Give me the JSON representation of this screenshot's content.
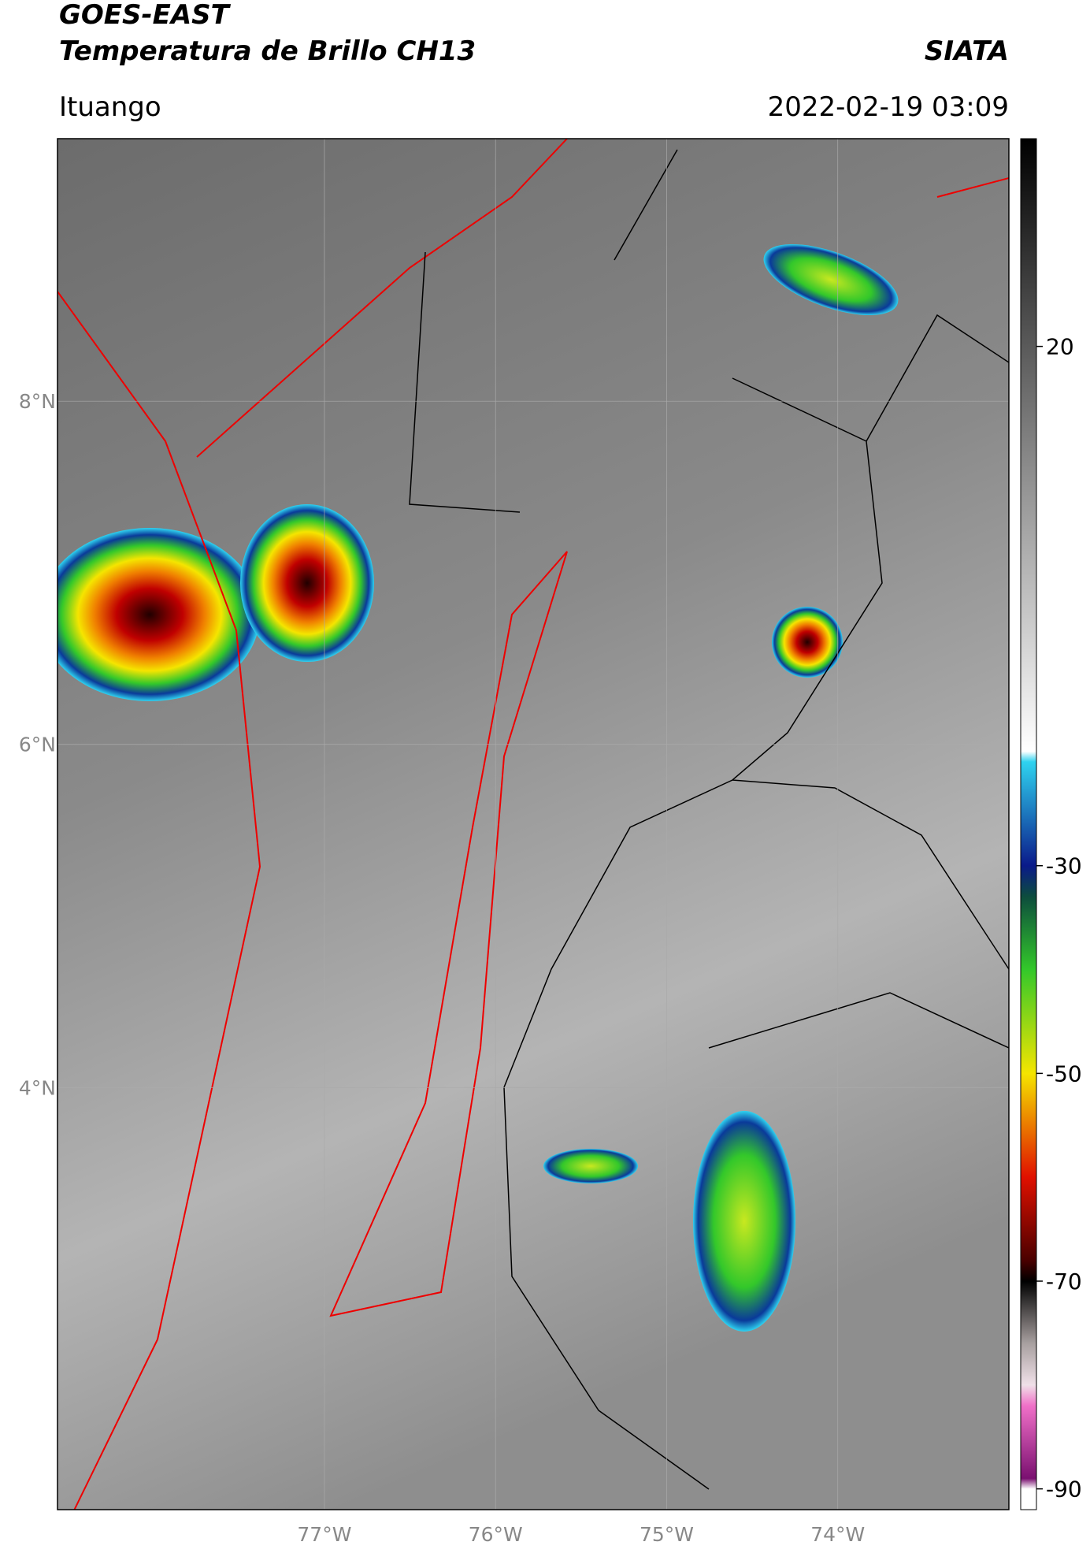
{
  "map": {
    "title": "GOES-EAST",
    "subtitle": "Temperatura de Brillo CH13",
    "source": "SIATA",
    "region": "Ituango",
    "datetime": "2022-02-19 03:09",
    "xlim": [
      -78.56,
      -73.0
    ],
    "ylim": [
      1.54,
      9.53
    ],
    "xticks": [
      {
        "value": -77,
        "label": "77°W"
      },
      {
        "value": -76,
        "label": "76°W"
      },
      {
        "value": -75,
        "label": "75°W"
      },
      {
        "value": -74,
        "label": "74°W"
      }
    ],
    "yticks": [
      {
        "value": 8,
        "label": "8°N"
      },
      {
        "value": 6,
        "label": "6°N"
      },
      {
        "value": 4,
        "label": "4°N"
      }
    ],
    "grid": true,
    "colorbar": {
      "lim": [
        -92,
        40
      ],
      "ticks": [
        20,
        -30,
        -50,
        -70,
        -90
      ],
      "colormap": [
        {
          "value": 40,
          "color": "#000000"
        },
        {
          "value": 20,
          "color": "#5a5a5a"
        },
        {
          "value": -19,
          "color": "#ffffff"
        },
        {
          "value": -20,
          "color": "#2fd3f0"
        },
        {
          "value": -30,
          "color": "#0a1a8a"
        },
        {
          "value": -33,
          "color": "#0d4d3d"
        },
        {
          "value": -40,
          "color": "#33c82a"
        },
        {
          "value": -50,
          "color": "#f5e500"
        },
        {
          "value": -60,
          "color": "#e01000"
        },
        {
          "value": -68,
          "color": "#4a0000"
        },
        {
          "value": -70,
          "color": "#000000"
        },
        {
          "value": -76,
          "color": "#a8a0a0"
        },
        {
          "value": -80,
          "color": "#f0e0e8"
        },
        {
          "value": -82,
          "color": "#f070c8"
        },
        {
          "value": -89,
          "color": "#7a1070"
        },
        {
          "value": -90,
          "color": "#ffffff"
        }
      ]
    }
  }
}
